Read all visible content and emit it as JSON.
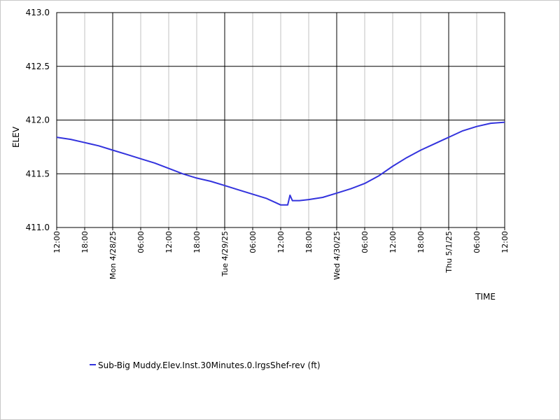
{
  "chart_data": {
    "type": "line",
    "xlabel": "TIME",
    "ylabel": "ELEV",
    "ylim": [
      411.0,
      413.0
    ],
    "yticks": [
      "413.0",
      "412.5",
      "412.0",
      "411.5",
      "411.0"
    ],
    "ytick_values": [
      413.0,
      412.5,
      412.0,
      411.5,
      411.0
    ],
    "xlim": [
      "2025-04-27 12:00",
      "2025-05-01 12:00"
    ],
    "xticks": [
      {
        "t": "2025-04-27 12:00",
        "label": "12:00",
        "major": false
      },
      {
        "t": "2025-04-27 18:00",
        "label": "18:00",
        "major": false
      },
      {
        "t": "2025-04-28 00:00",
        "label": "Mon 4/28/25",
        "major": true
      },
      {
        "t": "2025-04-28 06:00",
        "label": "06:00",
        "major": false
      },
      {
        "t": "2025-04-28 12:00",
        "label": "12:00",
        "major": false
      },
      {
        "t": "2025-04-28 18:00",
        "label": "18:00",
        "major": false
      },
      {
        "t": "2025-04-29 00:00",
        "label": "Tue 4/29/25",
        "major": true
      },
      {
        "t": "2025-04-29 06:00",
        "label": "06:00",
        "major": false
      },
      {
        "t": "2025-04-29 12:00",
        "label": "12:00",
        "major": false
      },
      {
        "t": "2025-04-29 18:00",
        "label": "18:00",
        "major": false
      },
      {
        "t": "2025-04-30 00:00",
        "label": "Wed 4/30/25",
        "major": true
      },
      {
        "t": "2025-04-30 06:00",
        "label": "06:00",
        "major": false
      },
      {
        "t": "2025-04-30 12:00",
        "label": "12:00",
        "major": false
      },
      {
        "t": "2025-04-30 18:00",
        "label": "18:00",
        "major": false
      },
      {
        "t": "2025-05-01 00:00",
        "label": "Thu 5/1/25",
        "major": true
      },
      {
        "t": "2025-05-01 06:00",
        "label": "06:00",
        "major": false
      },
      {
        "t": "2025-05-01 12:00",
        "label": "12:00",
        "major": false
      }
    ],
    "grid": true,
    "legend": "bottom-left",
    "series": [
      {
        "name": "Sub-Big Muddy.Elev.Inst.30Minutes.0.lrgsShef-rev (ft)",
        "color": "#3333dd",
        "points": [
          [
            "2025-04-27 12:00",
            411.84
          ],
          [
            "2025-04-27 15:00",
            411.82
          ],
          [
            "2025-04-27 18:00",
            411.79
          ],
          [
            "2025-04-27 21:00",
            411.76
          ],
          [
            "2025-04-28 00:00",
            411.72
          ],
          [
            "2025-04-28 03:00",
            411.68
          ],
          [
            "2025-04-28 06:00",
            411.64
          ],
          [
            "2025-04-28 09:00",
            411.6
          ],
          [
            "2025-04-28 12:00",
            411.55
          ],
          [
            "2025-04-28 15:00",
            411.5
          ],
          [
            "2025-04-28 18:00",
            411.46
          ],
          [
            "2025-04-28 21:00",
            411.43
          ],
          [
            "2025-04-29 00:00",
            411.39
          ],
          [
            "2025-04-29 03:00",
            411.35
          ],
          [
            "2025-04-29 06:00",
            411.31
          ],
          [
            "2025-04-29 09:00",
            411.27
          ],
          [
            "2025-04-29 11:00",
            411.23
          ],
          [
            "2025-04-29 12:00",
            411.21
          ],
          [
            "2025-04-29 13:30",
            411.21
          ],
          [
            "2025-04-29 14:00",
            411.3
          ],
          [
            "2025-04-29 14:30",
            411.25
          ],
          [
            "2025-04-29 16:00",
            411.25
          ],
          [
            "2025-04-29 18:00",
            411.26
          ],
          [
            "2025-04-29 21:00",
            411.28
          ],
          [
            "2025-04-30 00:00",
            411.32
          ],
          [
            "2025-04-30 03:00",
            411.36
          ],
          [
            "2025-04-30 06:00",
            411.41
          ],
          [
            "2025-04-30 09:00",
            411.48
          ],
          [
            "2025-04-30 12:00",
            411.57
          ],
          [
            "2025-04-30 15:00",
            411.65
          ],
          [
            "2025-04-30 18:00",
            411.72
          ],
          [
            "2025-04-30 21:00",
            411.78
          ],
          [
            "2025-05-01 00:00",
            411.84
          ],
          [
            "2025-05-01 03:00",
            411.9
          ],
          [
            "2025-05-01 06:00",
            411.94
          ],
          [
            "2025-05-01 09:00",
            411.97
          ],
          [
            "2025-05-01 12:00",
            411.98
          ]
        ]
      }
    ]
  }
}
